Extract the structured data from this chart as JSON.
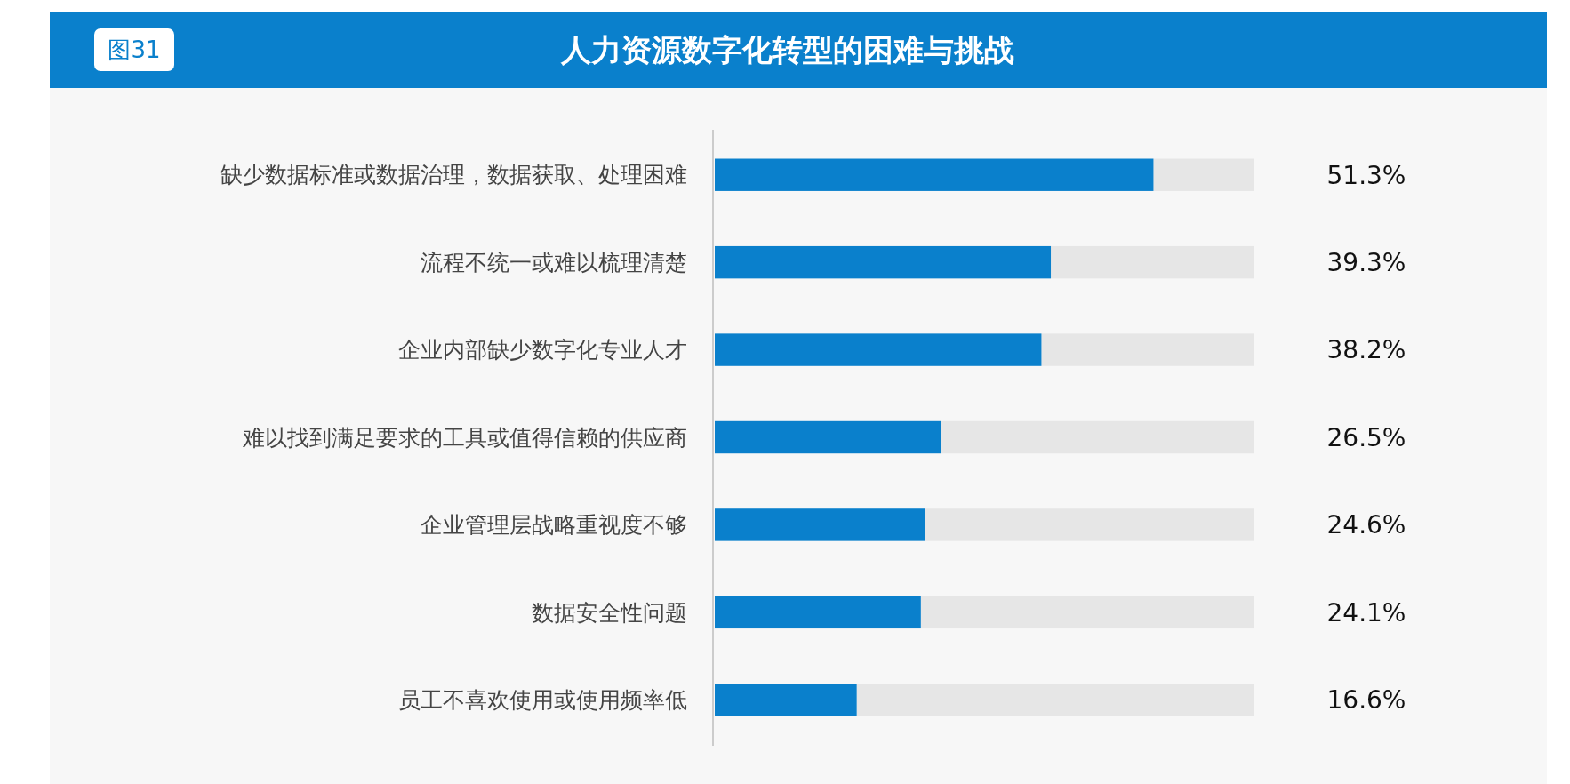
{
  "chart_data": {
    "type": "bar",
    "orientation": "horizontal",
    "title": "人力资源数字化转型的困难与挑战",
    "annotations": [
      "图31"
    ],
    "categories": [
      "缺少数据标准或数据治理，数据获取、处理困难",
      "流程不统一或难以梳理清楚",
      "企业内部缺少数字化专业人才",
      "难以找到满足要求的工具或值得信赖的供应商",
      "企业管理层战略重视度不够",
      "数据安全性问题",
      "员工不喜欢使用或使用频率低"
    ],
    "values": [
      51.3,
      39.3,
      38.2,
      26.5,
      24.6,
      24.1,
      16.6
    ],
    "value_labels": [
      "51.3%",
      "39.3%",
      "38.2%",
      "26.5%",
      "24.6%",
      "24.1%",
      "16.6%"
    ],
    "color": "#0a80cc",
    "xlim": [
      0,
      63
    ]
  }
}
